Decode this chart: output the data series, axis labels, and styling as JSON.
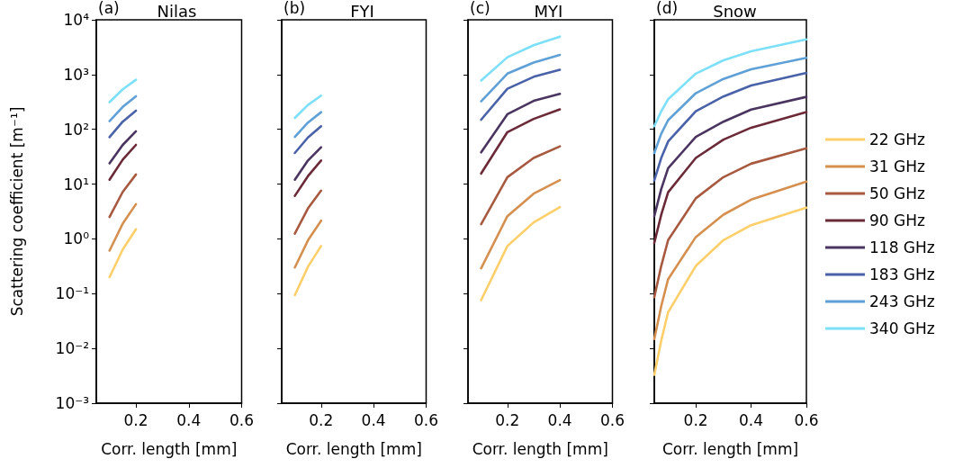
{
  "chart_data": [
    {
      "type": "line",
      "title": "Nilas",
      "annotations": [
        "(a)"
      ],
      "xlabel": "Corr. length [mm]",
      "ylabel": "Scattering coefficient [m⁻¹]",
      "log": "y",
      "xlim": [
        0.05,
        0.6
      ],
      "xticks": [
        0.2,
        0.4,
        0.6
      ],
      "ylim": [
        0.001,
        10000
      ],
      "yticks": [
        {
          "value": 0.001,
          "label": "10⁻³"
        },
        {
          "value": 0.01,
          "label": "10⁻²"
        },
        {
          "value": 0.1,
          "label": "10⁻¹"
        },
        {
          "value": 1,
          "label": "10⁰"
        },
        {
          "value": 10,
          "label": "10¹"
        },
        {
          "value": 100,
          "label": "10²"
        },
        {
          "value": 1000,
          "label": "10³"
        },
        {
          "value": 10000,
          "label": "10⁴"
        }
      ],
      "legend": false,
      "x": [
        0.1,
        0.15,
        0.2
      ],
      "series": [
        {
          "color": "#fdcf6b",
          "values": [
            0.2,
            0.64,
            1.5
          ]
        },
        {
          "color": "#d59050",
          "values": [
            0.61,
            1.9,
            4.3
          ]
        },
        {
          "color": "#a75a40",
          "values": [
            2.5,
            7.2,
            15
          ]
        },
        {
          "color": "#6a2a38",
          "values": [
            12,
            28,
            52
          ]
        },
        {
          "color": "#4a3560",
          "values": [
            24,
            52,
            92
          ]
        },
        {
          "color": "#4a62a8",
          "values": [
            72,
            138,
            219
          ]
        },
        {
          "color": "#5fa0d6",
          "values": [
            141,
            257,
            402
          ]
        },
        {
          "color": "#7de0f8",
          "values": [
            313,
            537,
            804
          ]
        }
      ]
    },
    {
      "type": "line",
      "title": "FYI",
      "annotations": [
        "(b)"
      ],
      "xlabel": "Corr. length [mm]",
      "log": "y",
      "tick_labels": "x",
      "xlim": [
        0.05,
        0.6
      ],
      "xticks": [
        0.2,
        0.4,
        0.6
      ],
      "ylim": [
        0.001,
        10000
      ],
      "yticks": [
        0.001,
        0.01,
        0.1,
        1,
        10,
        100,
        1000,
        10000
      ],
      "legend": false,
      "x": [
        0.1,
        0.15,
        0.2
      ],
      "series": [
        {
          "color": "#fdcf6b",
          "values": [
            0.094,
            0.31,
            0.74
          ]
        },
        {
          "color": "#d59050",
          "values": [
            0.3,
            0.94,
            2.15
          ]
        },
        {
          "color": "#a75a40",
          "values": [
            1.25,
            3.6,
            7.6
          ]
        },
        {
          "color": "#6a2a38",
          "values": [
            6.1,
            14,
            27
          ]
        },
        {
          "color": "#4a3560",
          "values": [
            12,
            27,
            47
          ]
        },
        {
          "color": "#4a62a8",
          "values": [
            37,
            71,
            114
          ]
        },
        {
          "color": "#5fa0d6",
          "values": [
            73,
            133,
            206
          ]
        },
        {
          "color": "#7de0f8",
          "values": [
            162,
            279,
            412
          ]
        }
      ]
    },
    {
      "type": "line",
      "title": "MYI",
      "annotations": [
        "(c)"
      ],
      "xlabel": "Corr. length [mm]",
      "log": "y",
      "tick_labels": "x",
      "xlim": [
        0.05,
        0.6
      ],
      "xticks": [
        0.2,
        0.4,
        0.6
      ],
      "ylim": [
        0.001,
        10000
      ],
      "yticks": [
        0.001,
        0.01,
        0.1,
        1,
        10,
        100,
        1000,
        10000
      ],
      "legend": false,
      "x": [
        0.1,
        0.2,
        0.3,
        0.4
      ],
      "series": [
        {
          "color": "#fdcf6b",
          "values": [
            0.076,
            0.74,
            2.0,
            3.8
          ]
        },
        {
          "color": "#d59050",
          "values": [
            0.29,
            2.6,
            6.7,
            11.8
          ]
        },
        {
          "color": "#a75a40",
          "values": [
            1.85,
            13.4,
            30,
            49
          ]
        },
        {
          "color": "#6a2a38",
          "values": [
            15.6,
            89,
            155,
            231
          ]
        },
        {
          "color": "#4a3560",
          "values": [
            38,
            189,
            331,
            445
          ]
        },
        {
          "color": "#4a62a8",
          "values": [
            150,
            550,
            910,
            1220
          ]
        },
        {
          "color": "#5fa0d6",
          "values": [
            324,
            1040,
            1660,
            2290
          ]
        },
        {
          "color": "#7de0f8",
          "values": [
            780,
            2070,
            3430,
            4930
          ]
        }
      ]
    },
    {
      "type": "line",
      "title": "Snow",
      "annotations": [
        "(d)"
      ],
      "xlabel": "Corr. length [mm]",
      "log": "y",
      "tick_labels": "x",
      "xlim": [
        0.05,
        0.6
      ],
      "xticks": [
        0.2,
        0.4,
        0.6
      ],
      "ylim": [
        0.001,
        10000
      ],
      "yticks": [
        0.001,
        0.01,
        0.1,
        1,
        10,
        100,
        1000,
        10000
      ],
      "legend": "right",
      "x": [
        0.05,
        0.075,
        0.1,
        0.2,
        0.3,
        0.4,
        0.6
      ],
      "series": [
        {
          "name": "22 GHz",
          "color": "#fdcf6b",
          "values": [
            0.0033,
            0.0138,
            0.046,
            0.32,
            0.95,
            1.78,
            3.7
          ]
        },
        {
          "name": "31 GHz",
          "color": "#d59050",
          "values": [
            0.0148,
            0.059,
            0.184,
            1.08,
            2.77,
            5.2,
            11.1
          ]
        },
        {
          "name": "50 GHz",
          "color": "#a75a40",
          "values": [
            0.086,
            0.32,
            0.95,
            5.5,
            13.4,
            23.6,
            45
          ]
        },
        {
          "name": "90 GHz",
          "color": "#6a2a38",
          "values": [
            0.84,
            2.75,
            7.1,
            30,
            65,
            107,
            206
          ]
        },
        {
          "name": "118 GHz",
          "color": "#4a3560",
          "values": [
            2.6,
            8.1,
            19.5,
            73,
            138,
            229,
            392
          ]
        },
        {
          "name": "183 GHz",
          "color": "#4a62a8",
          "values": [
            11.7,
            30,
            60,
            214,
            398,
            631,
            1070
          ]
        },
        {
          "name": "243 GHz",
          "color": "#5fa0d6",
          "values": [
            37,
            83,
            147,
            457,
            832,
            1250,
            2020
          ]
        },
        {
          "name": "340 GHz",
          "color": "#7de0f8",
          "values": [
            114,
            214,
            355,
            1040,
            1820,
            2660,
            4400
          ]
        }
      ]
    }
  ]
}
